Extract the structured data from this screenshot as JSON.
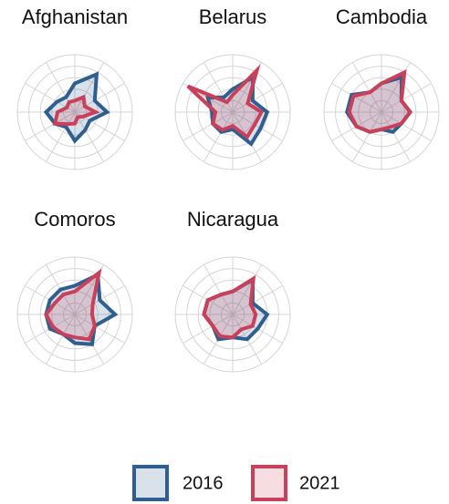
{
  "chart_data": [
    {
      "type": "radar",
      "title": "Afghanistan",
      "rlim": [
        0,
        5
      ],
      "rticks": [
        1,
        2,
        3,
        4,
        5
      ],
      "grid": true,
      "series": [
        {
          "name": "2016",
          "color": "#2e5f8f",
          "values": [
            2.5,
            3.8,
            2.0,
            2.8,
            1.5,
            1.8,
            2.5,
            1.5,
            2.0,
            2.5,
            1.8,
            1.5
          ]
        },
        {
          "name": "2021",
          "color": "#c8405a",
          "values": [
            1.0,
            1.5,
            1.0,
            1.8,
            0.8,
            0.5,
            1.0,
            1.2,
            2.0,
            1.5,
            0.8,
            1.0
          ]
        }
      ]
    },
    {
      "type": "radar",
      "title": "Belarus",
      "rlim": [
        0,
        5
      ],
      "rticks": [
        1,
        2,
        3,
        4,
        5
      ],
      "grid": true,
      "series": [
        {
          "name": "2016",
          "color": "#2e5f8f",
          "values": [
            2.0,
            3.5,
            2.0,
            3.0,
            2.8,
            3.2,
            1.5,
            2.0,
            2.0,
            1.8,
            2.5,
            1.5
          ]
        },
        {
          "name": "2021",
          "color": "#c8405a",
          "values": [
            1.5,
            4.2,
            1.5,
            2.5,
            2.2,
            2.5,
            1.2,
            1.8,
            2.0,
            1.5,
            4.5,
            1.0
          ]
        }
      ]
    },
    {
      "type": "radar",
      "title": "Cambodia",
      "rlim": [
        0,
        5
      ],
      "rticks": [
        1,
        2,
        3,
        4,
        5
      ],
      "grid": true,
      "series": [
        {
          "name": "2016",
          "color": "#2e5f8f",
          "values": [
            2.5,
            3.5,
            2.0,
            2.5,
            2.0,
            2.0,
            1.5,
            2.0,
            2.5,
            3.0,
            3.0,
            2.0
          ]
        },
        {
          "name": "2021",
          "color": "#c8405a",
          "values": [
            2.5,
            4.0,
            2.0,
            2.5,
            2.0,
            1.5,
            1.5,
            2.0,
            2.5,
            2.8,
            2.8,
            2.0
          ]
        }
      ]
    },
    {
      "type": "radar",
      "title": "Comoros",
      "rlim": [
        0,
        5
      ],
      "rticks": [
        1,
        2,
        3,
        4,
        5
      ],
      "grid": true,
      "series": [
        {
          "name": "2016",
          "color": "#2e5f8f",
          "values": [
            2.5,
            4.0,
            2.5,
            3.5,
            2.0,
            3.0,
            2.5,
            2.0,
            2.5,
            2.5,
            2.5,
            2.5
          ]
        },
        {
          "name": "2021",
          "color": "#c8405a",
          "values": [
            2.0,
            4.2,
            1.8,
            1.5,
            2.0,
            2.5,
            2.0,
            2.0,
            2.2,
            2.5,
            2.0,
            2.0
          ]
        }
      ]
    },
    {
      "type": "radar",
      "title": "Nicaragua",
      "rlim": [
        0,
        5
      ],
      "rticks": [
        1,
        2,
        3,
        4,
        5
      ],
      "grid": true,
      "series": [
        {
          "name": "2016",
          "color": "#2e5f8f",
          "values": [
            2.0,
            3.5,
            2.0,
            3.0,
            2.5,
            2.5,
            2.0,
            2.5,
            2.0,
            2.5,
            2.5,
            2.0
          ]
        },
        {
          "name": "2021",
          "color": "#c8405a",
          "values": [
            2.0,
            3.6,
            1.8,
            2.0,
            2.0,
            1.5,
            2.0,
            2.2,
            2.0,
            2.5,
            2.5,
            2.0
          ]
        }
      ]
    }
  ]
}
